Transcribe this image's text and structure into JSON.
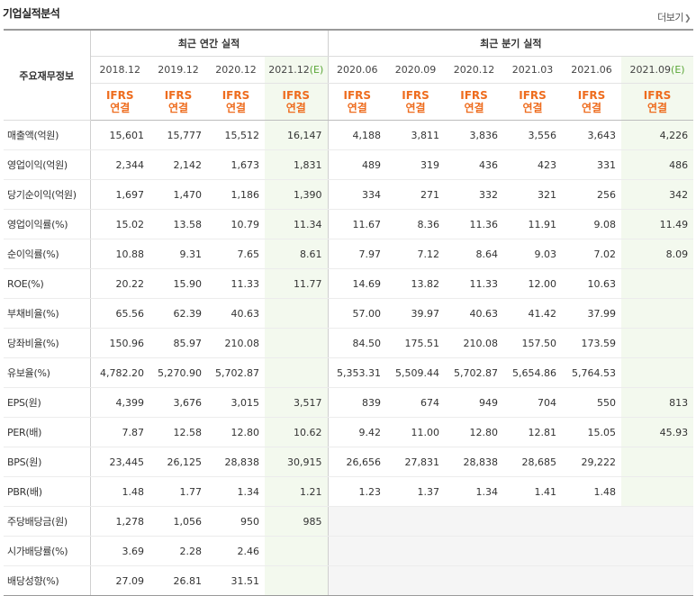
{
  "header": {
    "title": "기업실적분석",
    "more_label": "더보기",
    "more_icon": "chevron-right-icon"
  },
  "table": {
    "row_header_label": "주요재무정보",
    "annual_group_label": "최근 연간 실적",
    "quarter_group_label": "최근 분기 실적",
    "periods": [
      "2018.12",
      "2019.12",
      "2020.12",
      "2021.12",
      "2020.06",
      "2020.09",
      "2020.12",
      "2021.03",
      "2021.06",
      "2021.09"
    ],
    "estimate_suffix": "(E)",
    "standard_top": "IFRS",
    "standard_bottom": "연결",
    "rows": [
      {
        "label": "매출액(억원)",
        "values": [
          "15,601",
          "15,777",
          "15,512",
          "16,147",
          "4,188",
          "3,811",
          "3,836",
          "3,556",
          "3,643",
          "4,226"
        ]
      },
      {
        "label": "영업이익(억원)",
        "values": [
          "2,344",
          "2,142",
          "1,673",
          "1,831",
          "489",
          "319",
          "436",
          "423",
          "331",
          "486"
        ]
      },
      {
        "label": "당기순이익(억원)",
        "values": [
          "1,697",
          "1,470",
          "1,186",
          "1,390",
          "334",
          "271",
          "332",
          "321",
          "256",
          "342"
        ]
      },
      {
        "label": "영업이익률(%)",
        "values": [
          "15.02",
          "13.58",
          "10.79",
          "11.34",
          "11.67",
          "8.36",
          "11.36",
          "11.91",
          "9.08",
          "11.49"
        ]
      },
      {
        "label": "순이익률(%)",
        "values": [
          "10.88",
          "9.31",
          "7.65",
          "8.61",
          "7.97",
          "7.12",
          "8.64",
          "9.03",
          "7.02",
          "8.09"
        ]
      },
      {
        "label": "ROE(%)",
        "values": [
          "20.22",
          "15.90",
          "11.33",
          "11.77",
          "14.69",
          "13.82",
          "11.33",
          "12.00",
          "10.63",
          ""
        ]
      },
      {
        "label": "부채비율(%)",
        "values": [
          "65.56",
          "62.39",
          "40.63",
          "",
          "57.00",
          "39.97",
          "40.63",
          "41.42",
          "37.99",
          ""
        ]
      },
      {
        "label": "당좌비율(%)",
        "values": [
          "150.96",
          "85.97",
          "210.08",
          "",
          "84.50",
          "175.51",
          "210.08",
          "157.50",
          "173.59",
          ""
        ]
      },
      {
        "label": "유보율(%)",
        "values": [
          "4,782.20",
          "5,270.90",
          "5,702.87",
          "",
          "5,353.31",
          "5,509.44",
          "5,702.87",
          "5,654.86",
          "5,764.53",
          ""
        ]
      },
      {
        "label": "EPS(원)",
        "values": [
          "4,399",
          "3,676",
          "3,015",
          "3,517",
          "839",
          "674",
          "949",
          "704",
          "550",
          "813"
        ]
      },
      {
        "label": "PER(배)",
        "values": [
          "7.87",
          "12.58",
          "12.80",
          "10.62",
          "9.42",
          "11.00",
          "12.80",
          "12.81",
          "15.05",
          "45.93"
        ]
      },
      {
        "label": "BPS(원)",
        "values": [
          "23,445",
          "26,125",
          "28,838",
          "30,915",
          "26,656",
          "27,831",
          "28,838",
          "28,685",
          "29,222",
          ""
        ]
      },
      {
        "label": "PBR(배)",
        "values": [
          "1.48",
          "1.77",
          "1.34",
          "1.21",
          "1.23",
          "1.37",
          "1.34",
          "1.41",
          "1.48",
          ""
        ]
      },
      {
        "label": "주당배당금(원)",
        "values": [
          "1,278",
          "1,056",
          "950",
          "985",
          "",
          "",
          "",
          "",
          "",
          ""
        ]
      },
      {
        "label": "시가배당률(%)",
        "values": [
          "3.69",
          "2.28",
          "2.46",
          "",
          "",
          "",
          "",
          "",
          "",
          ""
        ]
      },
      {
        "label": "배당성향(%)",
        "values": [
          "27.09",
          "26.81",
          "31.51",
          "",
          "",
          "",
          "",
          "",
          "",
          ""
        ]
      }
    ]
  }
}
